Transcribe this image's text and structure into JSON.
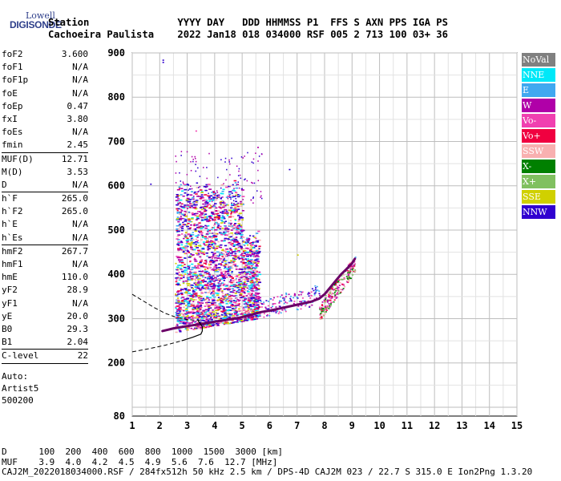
{
  "logo": {
    "line1": "Lowell",
    "line2": "DIGISONDE"
  },
  "header": {
    "line1": "Station               YYYY DAY   DDD HHMMSS P1  FFS S AXN PPS IGA PS",
    "line2": "Cachoeira Paulista    2022 Jan18 018 034000 RSF 005 2 713 100 03+ 36"
  },
  "params": [
    [
      {
        "k": "foF2",
        "v": "3.600"
      },
      {
        "k": "foF1",
        "v": "N/A"
      },
      {
        "k": "foF1p",
        "v": "N/A"
      },
      {
        "k": "foE",
        "v": "N/A"
      },
      {
        "k": "foEp",
        "v": "0.47"
      },
      {
        "k": "fxI",
        "v": "3.80"
      },
      {
        "k": "foEs",
        "v": "N/A"
      },
      {
        "k": "fmin",
        "v": "2.45"
      }
    ],
    [
      {
        "k": "MUF(D)",
        "v": "12.71"
      },
      {
        "k": "M(D)",
        "v": "3.53"
      },
      {
        "k": "D",
        "v": "N/A"
      }
    ],
    [
      {
        "k": "h`F",
        "v": "265.0"
      },
      {
        "k": "h`F2",
        "v": "265.0"
      },
      {
        "k": "h`E",
        "v": "N/A"
      },
      {
        "k": "h`Es",
        "v": "N/A"
      }
    ],
    [
      {
        "k": "hmF2",
        "v": "267.7"
      },
      {
        "k": "hmF1",
        "v": "N/A"
      },
      {
        "k": "hmE",
        "v": "110.0"
      },
      {
        "k": "yF2",
        "v": "28.9"
      },
      {
        "k": "yF1",
        "v": "N/A"
      },
      {
        "k": "yE",
        "v": "20.0"
      },
      {
        "k": "B0",
        "v": "29.3"
      },
      {
        "k": "B1",
        "v": "2.04"
      }
    ],
    [
      {
        "k": "C-level",
        "v": "22"
      }
    ]
  ],
  "auto": [
    "Auto:",
    "Artist5",
    "500200"
  ],
  "legend": [
    {
      "label": "NoVal",
      "color": "#808080"
    },
    {
      "label": "NNE",
      "color": "#00e8f8"
    },
    {
      "label": "E",
      "color": "#40a8f0"
    },
    {
      "label": "W",
      "color": "#b000a8"
    },
    {
      "label": "Vo-",
      "color": "#f040b0"
    },
    {
      "label": "Vo+",
      "color": "#f00040"
    },
    {
      "label": "SSW",
      "color": "#f8b0b0"
    },
    {
      "label": "X-",
      "color": "#008000"
    },
    {
      "label": "X+",
      "color": "#80c060"
    },
    {
      "label": "SSE",
      "color": "#d0d000"
    },
    {
      "label": "NNW",
      "color": "#3000d0"
    }
  ],
  "chart_data": {
    "type": "scatter",
    "xlim": [
      1,
      15
    ],
    "ylim": [
      80,
      900
    ],
    "x_ticks": [
      1,
      2,
      3,
      4,
      5,
      6,
      7,
      8,
      9,
      10,
      11,
      12,
      13,
      14,
      15
    ],
    "y_ticks": [
      80,
      200,
      300,
      400,
      500,
      600,
      700,
      800,
      900
    ],
    "grid": true,
    "o_trace": {
      "x": [
        2.1,
        2.3,
        2.5,
        2.7,
        2.9,
        3.1,
        3.3,
        3.5,
        3.7,
        3.9,
        4.1,
        4.3,
        4.5,
        4.7,
        4.9,
        5.1,
        5.3,
        5.5,
        5.7,
        6.0,
        6.3,
        6.6,
        6.9,
        7.2,
        7.5,
        7.8,
        8.0,
        8.2,
        8.4,
        8.6,
        8.8,
        9.0,
        9.1
      ],
      "y": [
        272,
        275,
        278,
        280,
        282,
        284,
        286,
        288,
        290,
        292,
        294,
        296,
        298,
        300,
        302,
        305,
        308,
        312,
        315,
        318,
        322,
        326,
        330,
        334,
        338,
        345,
        355,
        370,
        385,
        400,
        412,
        425,
        435
      ]
    },
    "profile_upper": {
      "x": [
        1.0,
        1.4,
        1.8,
        2.2,
        2.6,
        3.0,
        3.4,
        3.5
      ],
      "y": [
        355,
        340,
        325,
        312,
        303,
        298,
        296,
        297
      ]
    },
    "profile_lower": {
      "x": [
        1.0,
        1.6,
        2.2,
        2.8,
        3.2,
        3.5,
        3.55,
        3.55,
        3.4
      ],
      "y": [
        225,
        232,
        240,
        250,
        258,
        265,
        272,
        282,
        295
      ]
    }
  },
  "footer": {
    "line1": "D      100  200  400  600  800  1000  1500  3000 [km]",
    "line2": "MUF    3.9  4.0  4.2  4.5  4.9  5.6  7.6  12.7 [MHz]",
    "line3": "CAJ2M_2022018034000.RSF / 284fx512h 50 kHz 2.5 km / DPS-4D CAJ2M 023 / 22.7 S 315.0 E Ion2Png 1.3.20"
  }
}
